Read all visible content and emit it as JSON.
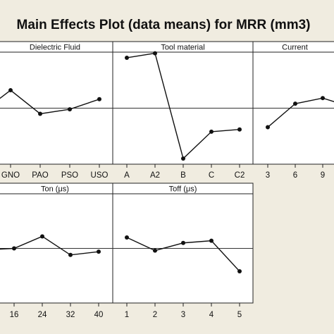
{
  "chart_data": {
    "type": "line",
    "title": "Main Effects Plot (data means) for MRR (mm3)",
    "grand_mean": 50,
    "ylim": [
      0,
      100
    ],
    "panels": [
      {
        "name": "Dielectric Fluid",
        "categories": [
          "GNO",
          "PAO",
          "PSO",
          "USO"
        ],
        "values": [
          66,
          45,
          49,
          58
        ],
        "prior_point": 54
      },
      {
        "name": "Tool material",
        "categories": [
          "A",
          "A2",
          "B",
          "C",
          "C2"
        ],
        "values": [
          95,
          99,
          5,
          29,
          31
        ]
      },
      {
        "name": "Current",
        "categories": [
          "3",
          "6",
          "9"
        ],
        "values": [
          33,
          54,
          59
        ],
        "trailing_point": 55
      },
      {
        "name": "Ton (μs)",
        "categories": [
          "16",
          "24",
          "32",
          "40"
        ],
        "values": [
          50,
          61,
          44,
          47
        ],
        "prior_point": 49
      },
      {
        "name": "Toff (μs)",
        "categories": [
          "1",
          "2",
          "3",
          "4",
          "5"
        ],
        "values": [
          60,
          48,
          55,
          57,
          29
        ]
      }
    ]
  }
}
